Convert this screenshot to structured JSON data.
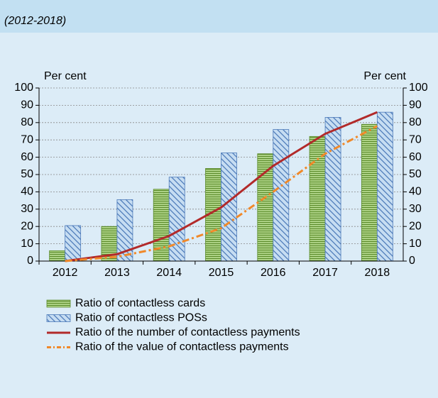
{
  "chart_data": {
    "type": "bar",
    "subtitle": "(2012-2018)",
    "y_label": "Per cent",
    "y2_label": "Per cent",
    "categories": [
      "2012",
      "2013",
      "2014",
      "2015",
      "2016",
      "2017",
      "2018"
    ],
    "series": [
      {
        "name": "Ratio of contactless cards",
        "type": "bar",
        "color": "#5a8a2a",
        "values": [
          6,
          20,
          41.5,
          53.5,
          62,
          72,
          79
        ]
      },
      {
        "name": "Ratio of contactless POSs",
        "type": "bar",
        "color": "#4a78b8",
        "values": [
          20.5,
          35.5,
          48.5,
          62.5,
          76,
          83,
          86
        ]
      },
      {
        "name": "Ratio of the number of contactless payments",
        "type": "line",
        "color": "#b22a2a",
        "values": [
          0,
          4,
          14.5,
          31,
          55,
          73.5,
          86
        ]
      },
      {
        "name": "Ratio of the value of contactless payments",
        "type": "dashed",
        "color": "#f0892a",
        "values": [
          0,
          2.5,
          8.5,
          19,
          40,
          62,
          78
        ]
      }
    ],
    "ylim": [
      0,
      100
    ],
    "yticks": [
      0,
      10,
      20,
      30,
      40,
      50,
      60,
      70,
      80,
      90,
      100
    ],
    "y2lim": [
      0,
      100
    ],
    "y2ticks": [
      0,
      10,
      20,
      30,
      40,
      50,
      60,
      70,
      80,
      90,
      100
    ],
    "grid": true
  }
}
